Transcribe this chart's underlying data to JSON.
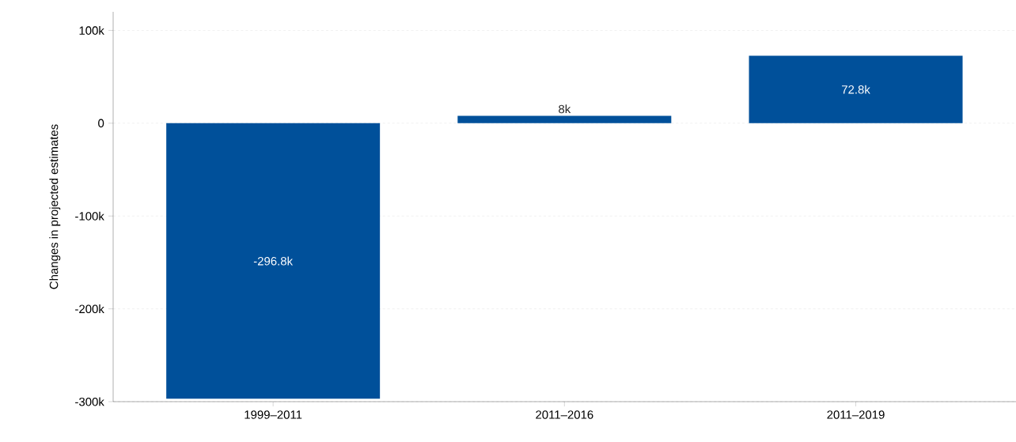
{
  "chart_data": {
    "type": "bar",
    "ylabel": "Changes in projected estimates",
    "categories": [
      "1999–2011",
      "2011–2016",
      "2011–2019"
    ],
    "values": [
      -296800,
      8000,
      72800
    ],
    "value_labels": [
      "-296.8k",
      "8k",
      "72.8k"
    ],
    "color": "#00509a",
    "ylim": [
      -300000,
      120000
    ],
    "yticks": [
      {
        "value": -300000,
        "label": "-300k"
      },
      {
        "value": -200000,
        "label": "-200k"
      },
      {
        "value": -100000,
        "label": "-100k"
      },
      0,
      {
        "value": 100000,
        "label": "100k"
      }
    ],
    "grid": "y"
  }
}
